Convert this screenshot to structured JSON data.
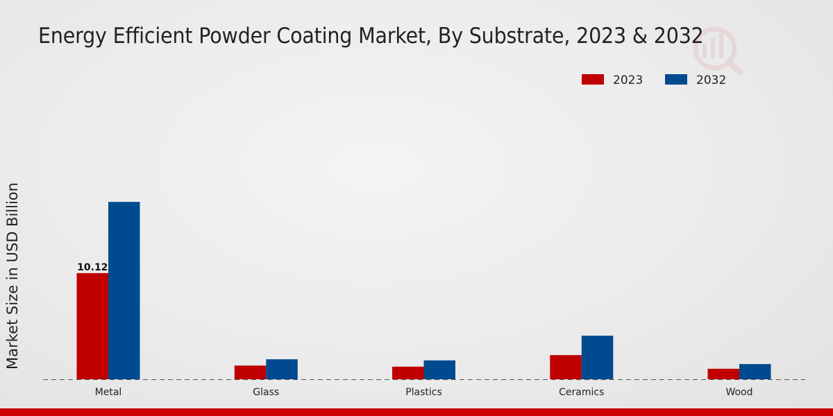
{
  "chart_data": {
    "type": "bar",
    "title": "Energy Efficient Powder Coating Market, By Substrate, 2023 & 2032",
    "xlabel": "",
    "ylabel": "Market Size in USD Billion",
    "categories": [
      "Metal",
      "Glass",
      "Plastics",
      "Ceramics",
      "Wood"
    ],
    "series": [
      {
        "name": "2023",
        "color": "#c00000",
        "values": [
          10.12,
          1.3,
          1.2,
          2.3,
          1.0
        ]
      },
      {
        "name": "2032",
        "color": "#004a8f",
        "values": [
          16.9,
          1.9,
          1.8,
          4.15,
          1.45
        ]
      }
    ],
    "data_labels": [
      {
        "series": "2023",
        "category": "Metal",
        "text": "10.12"
      }
    ],
    "ylim": [
      0,
      30
    ],
    "legend_position": "top-right",
    "grid": false
  }
}
